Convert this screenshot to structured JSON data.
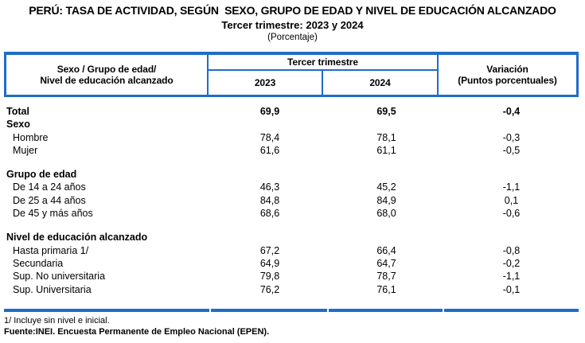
{
  "title": "PERÚ: TASA DE ACTIVIDAD, SEGÚN  SEXO, GRUPO DE EDAD Y NIVEL DE EDUCACIÓN ALCANZADO",
  "subtitle": "Tercer trimestre: 2023 y 2024",
  "unit_note": "(Porcentaje)",
  "colors": {
    "table_border": "#1E6DC8",
    "text": "#000000",
    "background": "#FFFFFF"
  },
  "table": {
    "header": {
      "col_label_line1": "Sexo / Grupo de edad/",
      "col_label_line2": "Nivel de educación alcanzado",
      "group_label": "Tercer trimestre",
      "year_2023": "2023",
      "year_2024": "2024",
      "variation_line1": "Variación",
      "variation_line2": "(Puntos porcentuales)"
    },
    "rows": [
      {
        "label": "Total",
        "bold": true,
        "indent": false,
        "v2023": "69,9",
        "v2024": "69,5",
        "var": "-0,4"
      },
      {
        "label": "Sexo",
        "bold": true,
        "indent": false,
        "v2023": "",
        "v2024": "",
        "var": ""
      },
      {
        "label": "Hombre",
        "bold": false,
        "indent": true,
        "v2023": "78,4",
        "v2024": "78,1",
        "var": "-0,3"
      },
      {
        "label": "Mujer",
        "bold": false,
        "indent": true,
        "v2023": "61,6",
        "v2024": "61,1",
        "var": "-0,5"
      },
      {
        "spacer": true
      },
      {
        "label": "Grupo de edad",
        "bold": true,
        "indent": false,
        "v2023": "",
        "v2024": "",
        "var": ""
      },
      {
        "label": "De 14 a 24 años",
        "bold": false,
        "indent": true,
        "v2023": "46,3",
        "v2024": "45,2",
        "var": "-1,1"
      },
      {
        "label": "De 25 a 44 años",
        "bold": false,
        "indent": true,
        "v2023": "84,8",
        "v2024": "84,9",
        "var": "0,1"
      },
      {
        "label": "De 45 y más años",
        "bold": false,
        "indent": true,
        "v2023": "68,6",
        "v2024": "68,0",
        "var": "-0,6"
      },
      {
        "spacer": true
      },
      {
        "label": "Nivel de educación alcanzado",
        "bold": true,
        "indent": false,
        "v2023": "",
        "v2024": "",
        "var": ""
      },
      {
        "label": "Hasta primaria 1/",
        "bold": false,
        "indent": true,
        "v2023": "67,2",
        "v2024": "66,4",
        "var": "-0,8"
      },
      {
        "label": "Secundaria",
        "bold": false,
        "indent": true,
        "v2023": "64,9",
        "v2024": "64,7",
        "var": "-0,2"
      },
      {
        "label": "Sup. No universitaria",
        "bold": false,
        "indent": true,
        "v2023": "79,8",
        "v2024": "78,7",
        "var": "-1,1"
      },
      {
        "label": "Sup. Universitaria",
        "bold": false,
        "indent": true,
        "v2023": "76,2",
        "v2024": "76,1",
        "var": "-0,1"
      }
    ]
  },
  "footnotes": {
    "note1": "1/ Incluye sin nivel e inicial.",
    "source": "Fuente:INEI. Encuesta Permanente de Empleo Nacional (EPEN)."
  },
  "chart_data": {
    "type": "table",
    "title": "PERÚ: TASA DE ACTIVIDAD, SEGÚN SEXO, GRUPO DE EDAD Y NIVEL DE EDUCACIÓN ALCANZADO",
    "subtitle": "Tercer trimestre: 2023 y 2024",
    "unit": "Porcentaje",
    "columns": [
      "Sexo / Grupo de edad/ Nivel de educación alcanzado",
      "Tercer trimestre 2023",
      "Tercer trimestre 2024",
      "Variación (Puntos porcentuales)"
    ],
    "rows": [
      {
        "group": null,
        "label": "Total",
        "t2023": 69.9,
        "t2024": 69.5,
        "variacion": -0.4
      },
      {
        "group": "Sexo",
        "label": "Hombre",
        "t2023": 78.4,
        "t2024": 78.1,
        "variacion": -0.3
      },
      {
        "group": "Sexo",
        "label": "Mujer",
        "t2023": 61.6,
        "t2024": 61.1,
        "variacion": -0.5
      },
      {
        "group": "Grupo de edad",
        "label": "De 14 a 24 años",
        "t2023": 46.3,
        "t2024": 45.2,
        "variacion": -1.1
      },
      {
        "group": "Grupo de edad",
        "label": "De 25 a 44 años",
        "t2023": 84.8,
        "t2024": 84.9,
        "variacion": 0.1
      },
      {
        "group": "Grupo de edad",
        "label": "De 45 y más años",
        "t2023": 68.6,
        "t2024": 68.0,
        "variacion": -0.6
      },
      {
        "group": "Nivel de educación alcanzado",
        "label": "Hasta primaria 1/",
        "t2023": 67.2,
        "t2024": 66.4,
        "variacion": -0.8
      },
      {
        "group": "Nivel de educación alcanzado",
        "label": "Secundaria",
        "t2023": 64.9,
        "t2024": 64.7,
        "variacion": -0.2
      },
      {
        "group": "Nivel de educación alcanzado",
        "label": "Sup. No universitaria",
        "t2023": 79.8,
        "t2024": 78.7,
        "variacion": -1.1
      },
      {
        "group": "Nivel de educación alcanzado",
        "label": "Sup. Universitaria",
        "t2023": 76.2,
        "t2024": 76.1,
        "variacion": -0.1
      }
    ]
  }
}
